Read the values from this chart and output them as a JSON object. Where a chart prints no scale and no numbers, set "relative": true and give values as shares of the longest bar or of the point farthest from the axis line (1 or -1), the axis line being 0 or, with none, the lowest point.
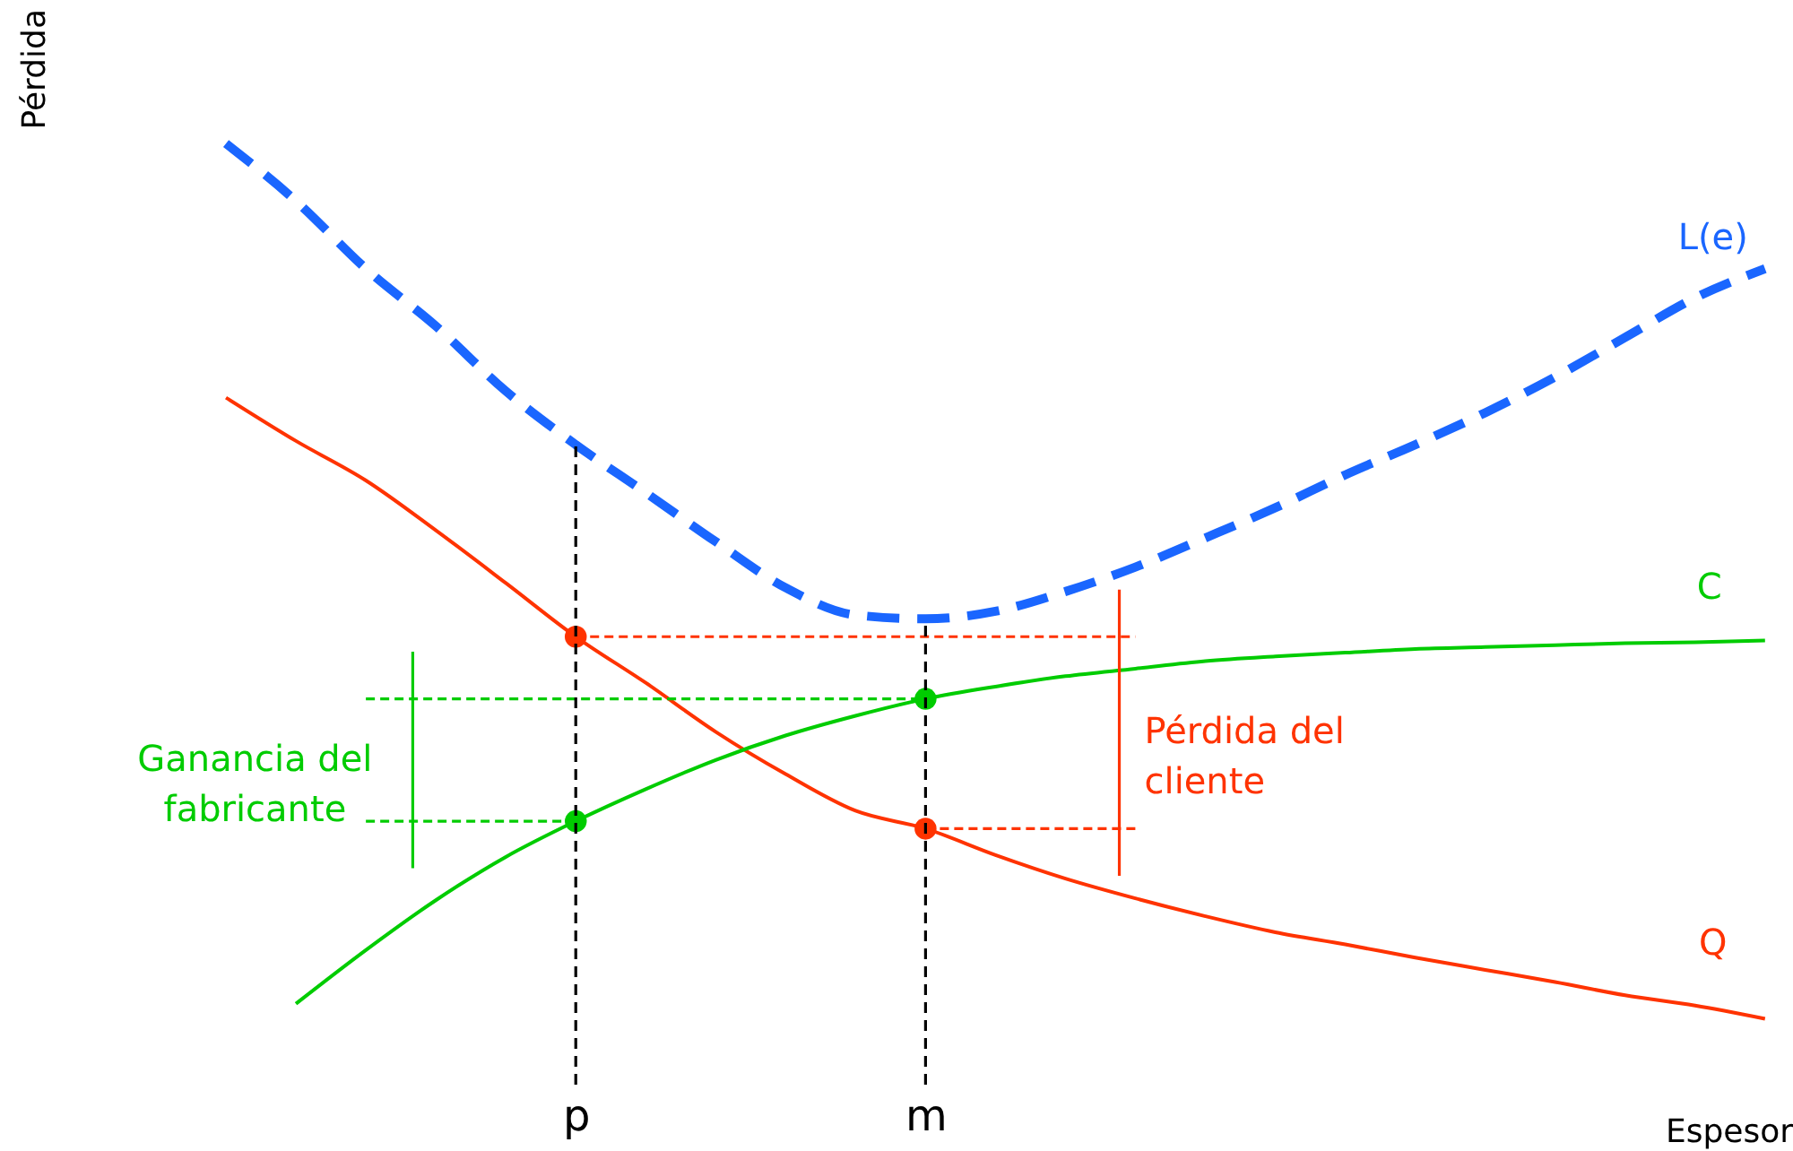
{
  "chart_data": {
    "type": "line",
    "relative": true,
    "xlabel": "Espesor",
    "ylabel": "Pérdida",
    "categories": [
      null,
      null,
      null,
      null,
      null,
      null,
      null,
      "p",
      null,
      null,
      null,
      null,
      "m",
      null,
      null,
      null,
      null,
      null,
      null,
      null,
      null,
      null,
      null,
      null,
      null
    ],
    "tick_labels": "x",
    "grid": false,
    "ref_lines": [
      {
        "axis": "x",
        "value": "p",
        "color": "#000000",
        "line_style": "dashed"
      },
      {
        "axis": "x",
        "value": "m",
        "color": "#000000",
        "line_style": "dashed"
      }
    ],
    "annotations": [
      "Ganancia del\nfabricante",
      "Pérdida del\ncliente"
    ],
    "series": [
      {
        "name": "L(e)",
        "color": "#1a66ff",
        "line_style": "dashed",
        "values": [
          null,
          null,
          1.0,
          0.939,
          0.867,
          0.806,
          0.737,
          0.68,
          0.629,
          0.577,
          0.528,
          0.499,
          0.495,
          0.503,
          0.524,
          0.55,
          0.581,
          0.613,
          0.648,
          0.68,
          0.714,
          0.752,
          0.794,
          0.836,
          0.867
        ]
      },
      {
        "name": "Q",
        "color": "#ff3300",
        "line_style": "solid",
        "values": [
          null,
          null,
          0.73,
          0.684,
          0.642,
          0.589,
          0.533,
          0.476,
          0.427,
          0.375,
          0.33,
          0.291,
          0.272,
          0.244,
          0.219,
          0.198,
          0.179,
          0.162,
          0.149,
          0.135,
          0.122,
          0.109,
          0.095,
          0.084,
          0.07
        ]
      },
      {
        "name": "C",
        "color": "#00cc00",
        "line_style": "solid",
        "values": [
          null,
          null,
          null,
          0.086,
          0.143,
          0.196,
          0.242,
          0.28,
          0.314,
          0.345,
          0.371,
          0.392,
          0.41,
          0.423,
          0.434,
          0.442,
          0.45,
          0.455,
          0.459,
          0.463,
          0.465,
          0.467,
          0.469,
          0.47,
          0.472
        ]
      },
      {
        "color": "#ff3300",
        "line_style": "dotted",
        "values": [
          null,
          null,
          null,
          null,
          null,
          null,
          null,
          0.476,
          0.476,
          0.476,
          0.476,
          0.476,
          0.476,
          0.476,
          0.476,
          0.476,
          null,
          null,
          null,
          null,
          null,
          null,
          null,
          null,
          null
        ]
      },
      {
        "color": "#ff3300",
        "line_style": "dotted",
        "values": [
          null,
          null,
          null,
          null,
          null,
          null,
          null,
          null,
          null,
          null,
          null,
          null,
          0.272,
          0.272,
          0.272,
          0.272,
          null,
          null,
          null,
          null,
          null,
          null,
          null,
          null,
          null
        ]
      },
      {
        "color": "#00cc00",
        "line_style": "dotted",
        "values": [
          null,
          null,
          null,
          null,
          0.41,
          0.41,
          0.41,
          0.41,
          0.41,
          0.41,
          0.41,
          0.41,
          0.41,
          null,
          null,
          null,
          null,
          null,
          null,
          null,
          null,
          null,
          null,
          null,
          null
        ]
      },
      {
        "color": "#00cc00",
        "line_style": "dotted",
        "values": [
          null,
          null,
          null,
          null,
          0.28,
          0.28,
          0.28,
          0.28,
          null,
          null,
          null,
          null,
          null,
          null,
          null,
          null,
          null,
          null,
          null,
          null,
          null,
          null,
          null,
          null,
          null
        ]
      },
      {
        "type": "scatter",
        "marker": "circle",
        "color": "#ff3300",
        "values": [
          null,
          null,
          null,
          null,
          null,
          null,
          null,
          0.476,
          null,
          null,
          null,
          null,
          0.272,
          null,
          null,
          null,
          null,
          null,
          null,
          null,
          null,
          null,
          null,
          null,
          null
        ]
      },
      {
        "type": "scatter",
        "marker": "circle",
        "color": "#00cc00",
        "values": [
          null,
          null,
          null,
          null,
          null,
          null,
          null,
          0.28,
          null,
          null,
          null,
          null,
          0.41,
          null,
          null,
          null,
          null,
          null,
          null,
          null,
          null,
          null,
          null,
          null,
          null
        ]
      }
    ]
  }
}
